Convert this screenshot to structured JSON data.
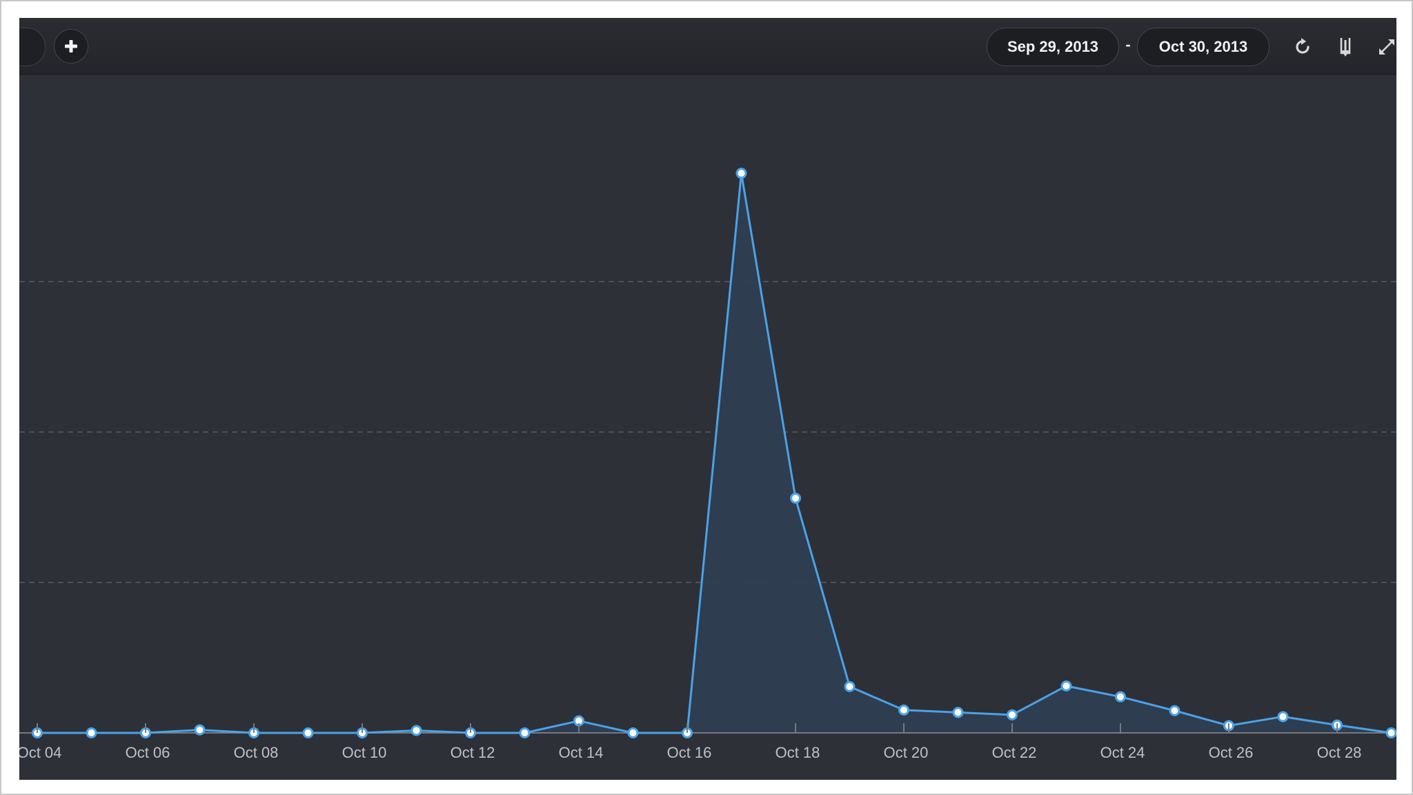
{
  "toolbar": {
    "add_icon": "plus-icon",
    "date_start": "Sep 29, 2013",
    "date_separator": "-",
    "date_end": "Oct 30, 2013",
    "refresh_icon": "refresh-icon",
    "download_icon": "download-icon",
    "expand_icon": "expand-icon"
  },
  "colors": {
    "background": "#2e3038",
    "toolbar": "#26272c",
    "line": "#4aa3e8",
    "area": "#2f3f52",
    "grid": "#595b63",
    "tick_text": "#bfc1c7"
  },
  "chart_data": {
    "type": "area",
    "x": [
      "Oct 04",
      "Oct 05",
      "Oct 06",
      "Oct 07",
      "Oct 08",
      "Oct 09",
      "Oct 10",
      "Oct 11",
      "Oct 12",
      "Oct 13",
      "Oct 14",
      "Oct 15",
      "Oct 16",
      "Oct 17",
      "Oct 18",
      "Oct 19",
      "Oct 20",
      "Oct 21",
      "Oct 22",
      "Oct 23",
      "Oct 24",
      "Oct 25",
      "Oct 26",
      "Oct 27",
      "Oct 28",
      "Oct 29"
    ],
    "tick_labels": [
      "Oct 04",
      "Oct 06",
      "Oct 08",
      "Oct 10",
      "Oct 12",
      "Oct 14",
      "Oct 16",
      "Oct 18",
      "Oct 20",
      "Oct 22",
      "Oct 24",
      "Oct 26",
      "Oct 28"
    ],
    "series": [
      {
        "values": [
          0,
          0,
          0,
          0.5,
          0,
          0,
          0,
          0.4,
          0,
          0,
          2,
          0,
          0,
          93,
          39,
          7.7,
          3.8,
          3.4,
          3,
          7.8,
          6,
          3.7,
          1.2,
          2.7,
          1.3,
          0
        ]
      }
    ],
    "ylim": [
      0,
      100
    ],
    "gridlines": [
      25,
      50,
      75
    ],
    "grid": true,
    "legend": "none",
    "xlabel": "",
    "ylabel": "",
    "title": ""
  }
}
